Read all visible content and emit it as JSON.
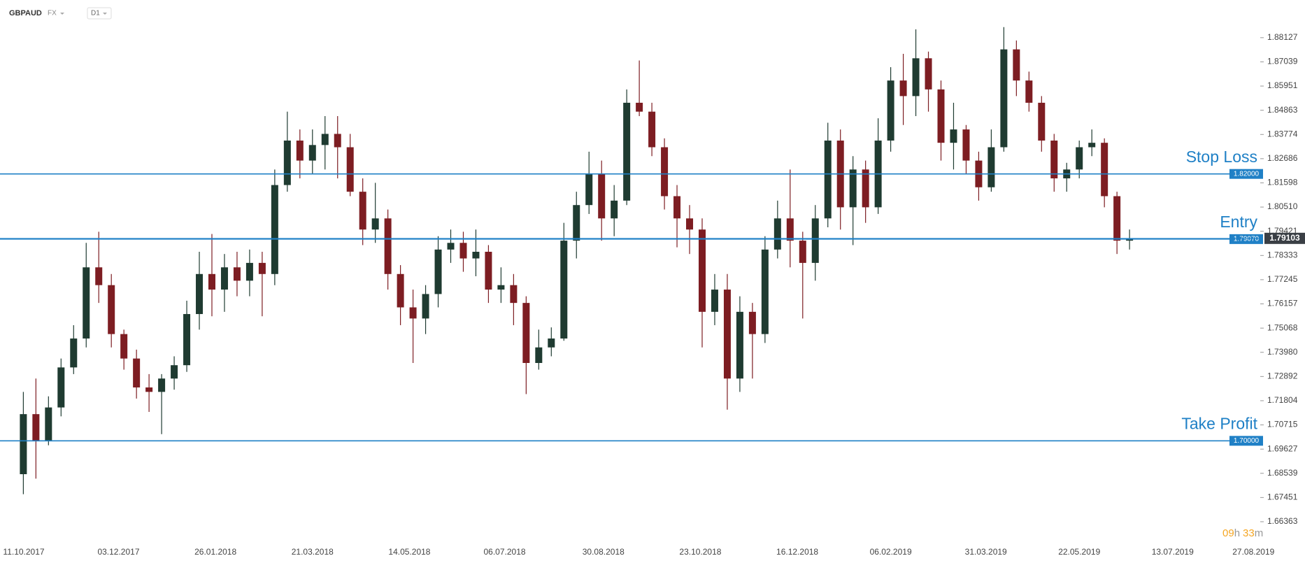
{
  "symbol": "GBPAUD",
  "market": "FX",
  "timeframe": "D1",
  "countdown": {
    "hours": "09",
    "hours_unit": "h",
    "minutes": "33",
    "minutes_unit": "m"
  },
  "chart_data": {
    "type": "candlestick",
    "up_color": "#1f3b31",
    "down_color": "#7d1d22",
    "level_color": "#1f80c6",
    "last_price_color": "#3a3f45",
    "x": [
      "11.10.2017",
      "18.10.2017",
      "25.10.2017",
      "01.11.2017",
      "08.11.2017",
      "15.11.2017",
      "22.11.2017",
      "29.11.2017",
      "06.12.2017",
      "13.12.2017",
      "20.12.2017",
      "27.12.2017",
      "03.01.2018",
      "10.01.2018",
      "17.01.2018",
      "24.01.2018",
      "31.01.2018",
      "07.02.2018",
      "14.02.2018",
      "21.02.2018",
      "28.02.2018",
      "07.03.2018",
      "14.03.2018",
      "21.03.2018",
      "28.03.2018",
      "04.04.2018",
      "11.04.2018",
      "18.04.2018",
      "25.04.2018",
      "02.05.2018",
      "09.05.2018",
      "16.05.2018",
      "23.05.2018",
      "30.05.2018",
      "06.06.2018",
      "13.06.2018",
      "20.06.2018",
      "27.06.2018",
      "04.07.2018",
      "11.07.2018",
      "18.07.2018",
      "25.07.2018",
      "01.08.2018",
      "08.08.2018",
      "15.08.2018",
      "22.08.2018",
      "29.08.2018",
      "05.09.2018",
      "12.09.2018",
      "19.09.2018",
      "26.09.2018",
      "03.10.2018",
      "10.10.2018",
      "17.10.2018",
      "24.10.2018",
      "31.10.2018",
      "07.11.2018",
      "14.11.2018",
      "21.11.2018",
      "28.11.2018",
      "05.12.2018",
      "12.12.2018",
      "19.12.2018",
      "26.12.2018",
      "02.01.2019",
      "09.01.2019",
      "16.01.2019",
      "23.01.2019",
      "30.01.2019",
      "06.02.2019",
      "13.02.2019",
      "20.02.2019",
      "27.02.2019",
      "06.03.2019",
      "13.03.2019",
      "20.03.2019",
      "27.03.2019",
      "03.04.2019",
      "10.04.2019",
      "17.04.2019",
      "24.04.2019",
      "01.05.2019",
      "08.05.2019",
      "15.05.2019",
      "22.05.2019",
      "29.05.2019",
      "05.06.2019",
      "12.06.2019",
      "19.06.2019"
    ],
    "open": [
      1.685,
      1.712,
      1.7,
      1.715,
      1.733,
      1.746,
      1.778,
      1.77,
      1.748,
      1.737,
      1.724,
      1.722,
      1.728,
      1.734,
      1.757,
      1.775,
      1.768,
      1.778,
      1.772,
      1.78,
      1.775,
      1.815,
      1.835,
      1.826,
      1.833,
      1.838,
      1.832,
      1.812,
      1.795,
      1.8,
      1.775,
      1.76,
      1.755,
      1.766,
      1.786,
      1.789,
      1.782,
      1.785,
      1.768,
      1.77,
      1.762,
      1.735,
      1.742,
      1.746,
      1.79,
      1.806,
      1.82,
      1.8,
      1.808,
      1.852,
      1.848,
      1.832,
      1.81,
      1.8,
      1.795,
      1.758,
      1.768,
      1.728,
      1.758,
      1.748,
      1.786,
      1.8,
      1.79,
      1.78,
      1.8,
      1.835,
      1.805,
      1.822,
      1.805,
      1.835,
      1.862,
      1.855,
      1.872,
      1.858,
      1.834,
      1.84,
      1.826,
      1.814,
      1.832,
      1.876,
      1.862,
      1.852,
      1.835,
      1.818,
      1.822,
      1.832,
      1.834,
      1.81,
      1.79
    ],
    "high": [
      1.722,
      1.728,
      1.72,
      1.737,
      1.752,
      1.789,
      1.794,
      1.775,
      1.75,
      1.741,
      1.73,
      1.73,
      1.738,
      1.763,
      1.785,
      1.793,
      1.784,
      1.785,
      1.786,
      1.785,
      1.822,
      1.848,
      1.84,
      1.84,
      1.846,
      1.846,
      1.838,
      1.818,
      1.816,
      1.804,
      1.779,
      1.768,
      1.77,
      1.792,
      1.795,
      1.794,
      1.795,
      1.788,
      1.778,
      1.775,
      1.765,
      1.75,
      1.751,
      1.798,
      1.812,
      1.83,
      1.826,
      1.815,
      1.858,
      1.871,
      1.852,
      1.836,
      1.815,
      1.806,
      1.8,
      1.775,
      1.775,
      1.765,
      1.762,
      1.792,
      1.808,
      1.822,
      1.794,
      1.806,
      1.843,
      1.84,
      1.828,
      1.826,
      1.845,
      1.868,
      1.874,
      1.885,
      1.875,
      1.862,
      1.852,
      1.842,
      1.83,
      1.84,
      1.886,
      1.88,
      1.866,
      1.855,
      1.838,
      1.825,
      1.835,
      1.84,
      1.836,
      1.812,
      1.795
    ],
    "low": [
      1.676,
      1.683,
      1.698,
      1.711,
      1.73,
      1.742,
      1.762,
      1.742,
      1.732,
      1.719,
      1.713,
      1.703,
      1.723,
      1.731,
      1.75,
      1.756,
      1.758,
      1.765,
      1.765,
      1.756,
      1.77,
      1.812,
      1.818,
      1.82,
      1.822,
      1.818,
      1.81,
      1.788,
      1.789,
      1.768,
      1.752,
      1.735,
      1.748,
      1.76,
      1.78,
      1.776,
      1.774,
      1.762,
      1.762,
      1.752,
      1.721,
      1.732,
      1.738,
      1.745,
      1.782,
      1.802,
      1.79,
      1.792,
      1.806,
      1.846,
      1.828,
      1.804,
      1.787,
      1.784,
      1.742,
      1.752,
      1.714,
      1.722,
      1.728,
      1.744,
      1.782,
      1.778,
      1.755,
      1.772,
      1.796,
      1.795,
      1.788,
      1.798,
      1.802,
      1.83,
      1.842,
      1.846,
      1.848,
      1.826,
      1.822,
      1.82,
      1.808,
      1.812,
      1.83,
      1.855,
      1.848,
      1.83,
      1.812,
      1.812,
      1.818,
      1.828,
      1.805,
      1.784,
      1.786
    ],
    "close": [
      1.712,
      1.7,
      1.715,
      1.733,
      1.746,
      1.778,
      1.77,
      1.748,
      1.737,
      1.724,
      1.722,
      1.728,
      1.734,
      1.757,
      1.775,
      1.768,
      1.778,
      1.772,
      1.78,
      1.775,
      1.815,
      1.835,
      1.826,
      1.833,
      1.838,
      1.832,
      1.812,
      1.795,
      1.8,
      1.775,
      1.76,
      1.755,
      1.766,
      1.786,
      1.789,
      1.782,
      1.785,
      1.768,
      1.77,
      1.762,
      1.735,
      1.742,
      1.746,
      1.79,
      1.806,
      1.82,
      1.8,
      1.808,
      1.852,
      1.848,
      1.832,
      1.81,
      1.8,
      1.795,
      1.758,
      1.768,
      1.728,
      1.758,
      1.748,
      1.786,
      1.8,
      1.79,
      1.78,
      1.8,
      1.835,
      1.805,
      1.822,
      1.805,
      1.835,
      1.862,
      1.855,
      1.872,
      1.858,
      1.834,
      1.84,
      1.826,
      1.814,
      1.832,
      1.876,
      1.862,
      1.852,
      1.835,
      1.818,
      1.822,
      1.832,
      1.834,
      1.81,
      1.79,
      1.791
    ],
    "xlim": [
      "28.09.2017",
      "30.08.2019"
    ],
    "xticks": [
      "11.10.2017",
      "03.12.2017",
      "26.01.2018",
      "21.03.2018",
      "14.05.2018",
      "06.07.2018",
      "30.08.2018",
      "23.10.2018",
      "16.12.2018",
      "06.02.2019",
      "31.03.2019",
      "22.05.2019",
      "13.07.2019",
      "27.08.2019"
    ],
    "ylim": [
      1.6545,
      1.8982
    ],
    "yticks": [
      1.88127,
      1.87039,
      1.85951,
      1.84863,
      1.83774,
      1.82686,
      1.81598,
      {
        "value": 1.8051,
        "label": "1.80510"
      },
      1.79421,
      1.78333,
      1.77245,
      1.76157,
      1.75068,
      {
        "value": 1.7398,
        "label": "1.73980"
      },
      1.72892,
      1.71804,
      1.70715,
      1.69627,
      1.68539,
      1.67451,
      1.66363
    ],
    "levels": [
      {
        "name": "Stop Loss",
        "value": 1.82,
        "value_label": "1.82000"
      },
      {
        "name": "Entry",
        "value": 1.7907,
        "value_label": "1.79070"
      },
      {
        "name": "Take Profit",
        "value": 1.7,
        "value_label": "1.70000"
      }
    ],
    "last_price": 1.79103
  }
}
